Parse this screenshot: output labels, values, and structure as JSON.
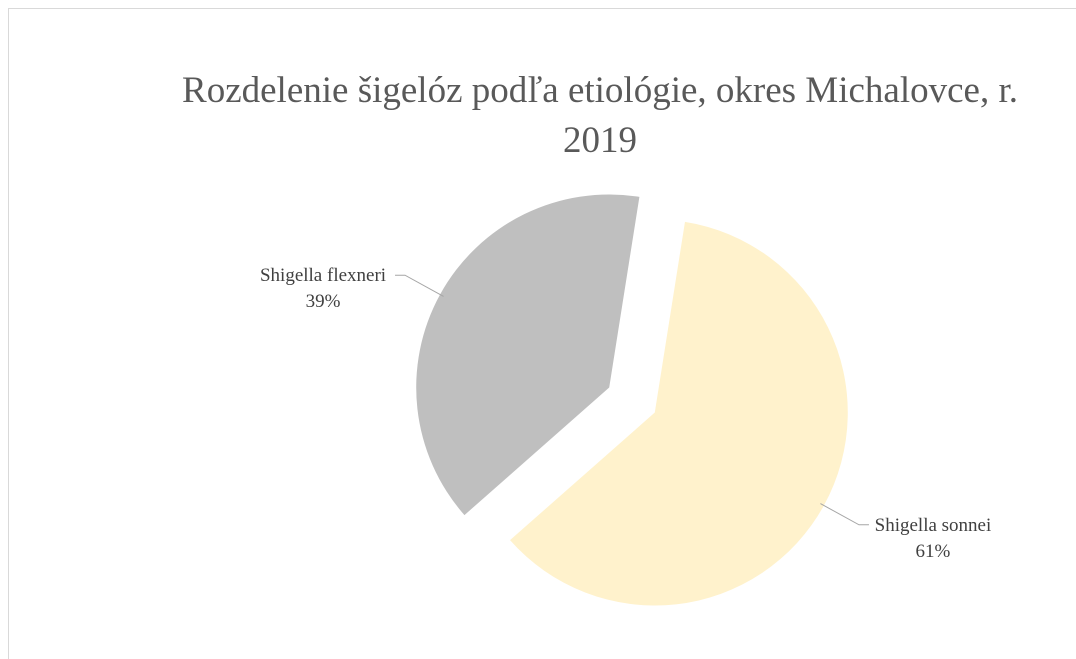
{
  "chart_data": {
    "type": "pie",
    "title": "Rozdelenie šigelóz podľa etiológie, okres Michalovce, r. 2019",
    "categories": [
      "Shigella sonnei",
      "Shigella flexneri"
    ],
    "values": [
      61,
      39
    ],
    "value_labels": [
      "61%",
      "39%"
    ],
    "colors": [
      "#fff2cc",
      "#bfbfbf"
    ],
    "start_angle": 9,
    "exploded": true
  }
}
